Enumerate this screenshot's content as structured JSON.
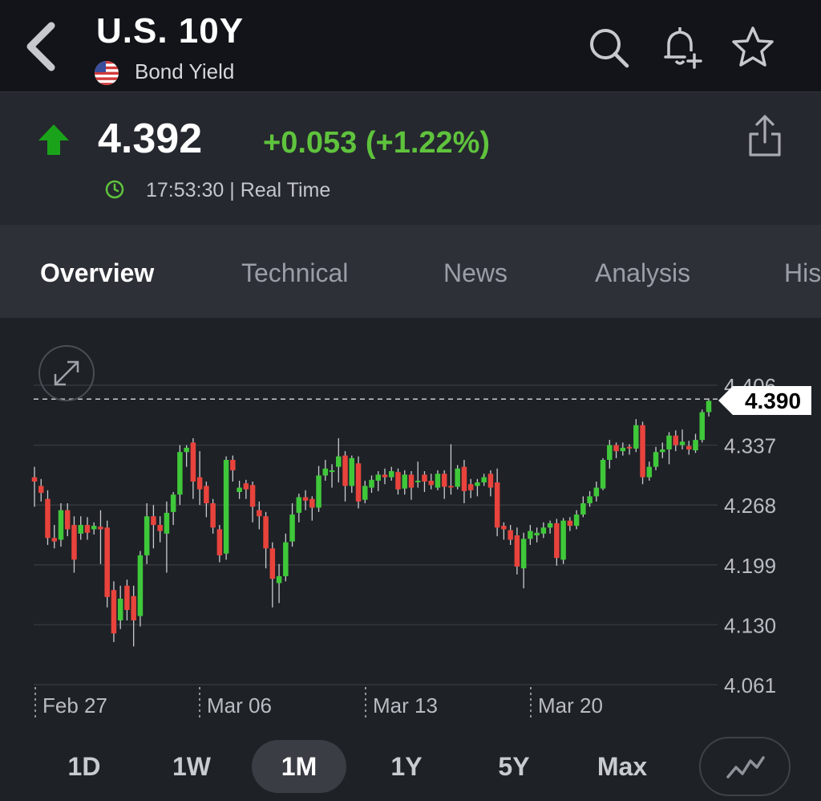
{
  "header": {
    "title": "U.S. 10Y",
    "subtitle": "Bond Yield",
    "icons": [
      "back-chevron-icon",
      "flag-us-icon",
      "search-icon",
      "add-alert-icon",
      "star-icon"
    ]
  },
  "quote": {
    "price": "4.392",
    "change": "+0.053 (+1.22%)",
    "time": "17:53:30 | Real Time",
    "direction": "up",
    "up_color": "#1aa31a"
  },
  "tabs": [
    {
      "label": "Overview",
      "active": true
    },
    {
      "label": "Technical",
      "active": false
    },
    {
      "label": "News",
      "active": false
    },
    {
      "label": "Analysis",
      "active": false
    },
    {
      "label": "His",
      "active": false
    }
  ],
  "chart_data": {
    "type": "candlestick",
    "y_ticks": [
      "4.406",
      "4.337",
      "4.268",
      "4.199",
      "4.130",
      "4.061"
    ],
    "x_ticks": [
      "Feb 27",
      "Mar 06",
      "Mar 13",
      "Mar 20"
    ],
    "ylim": [
      4.061,
      4.406
    ],
    "current_label": "4.390",
    "current_value": 4.39,
    "up_color": "#3fc83a",
    "down_color": "#e8433c",
    "candles": [
      [
        4.3,
        4.295,
        4.312,
        4.266
      ],
      [
        4.29,
        4.282,
        4.298,
        4.272
      ],
      [
        4.275,
        4.23,
        4.285,
        4.222
      ],
      [
        4.23,
        4.226,
        4.245,
        4.218
      ],
      [
        4.228,
        4.262,
        4.27,
        4.22
      ],
      [
        4.262,
        4.24,
        4.27,
        4.232
      ],
      [
        4.245,
        4.205,
        4.255,
        4.19
      ],
      [
        4.235,
        4.245,
        4.255,
        4.228
      ],
      [
        4.245,
        4.236,
        4.254,
        4.228
      ],
      [
        4.24,
        4.244,
        4.248,
        4.234
      ],
      [
        4.243,
        4.24,
        4.262,
        4.2
      ],
      [
        4.242,
        4.162,
        4.25,
        4.15
      ],
      [
        4.17,
        4.12,
        4.18,
        4.11
      ],
      [
        4.135,
        4.16,
        4.175,
        4.125
      ],
      [
        4.175,
        4.147,
        4.182,
        4.135
      ],
      [
        4.163,
        4.135,
        4.175,
        4.105
      ],
      [
        4.14,
        4.21,
        4.215,
        4.128
      ],
      [
        4.21,
        4.255,
        4.27,
        4.2
      ],
      [
        4.255,
        4.245,
        4.268,
        4.218
      ],
      [
        4.245,
        4.238,
        4.255,
        4.225
      ],
      [
        4.235,
        4.259,
        4.272,
        4.19
      ],
      [
        4.26,
        4.28,
        4.283,
        4.245
      ],
      [
        4.28,
        4.329,
        4.337,
        4.268
      ],
      [
        4.329,
        4.334,
        4.337,
        4.312
      ],
      [
        4.34,
        4.295,
        4.345,
        4.275
      ],
      [
        4.3,
        4.286,
        4.33,
        4.268
      ],
      [
        4.29,
        4.27,
        4.295,
        4.254
      ],
      [
        4.27,
        4.242,
        4.275,
        4.235
      ],
      [
        4.24,
        4.21,
        4.245,
        4.202
      ],
      [
        4.212,
        4.32,
        4.324,
        4.205
      ],
      [
        4.32,
        4.308,
        4.325,
        4.295
      ],
      [
        4.283,
        4.288,
        4.296,
        4.275
      ],
      [
        4.293,
        4.286,
        4.297,
        4.275
      ],
      [
        4.291,
        4.266,
        4.295,
        4.248
      ],
      [
        4.262,
        4.255,
        4.272,
        4.24
      ],
      [
        4.255,
        4.218,
        4.26,
        4.195
      ],
      [
        4.218,
        4.183,
        4.225,
        4.15
      ],
      [
        4.178,
        4.186,
        4.2,
        4.155
      ],
      [
        4.186,
        4.225,
        4.235,
        4.18
      ],
      [
        4.226,
        4.257,
        4.27,
        4.22
      ],
      [
        4.259,
        4.277,
        4.281,
        4.248
      ],
      [
        4.277,
        4.273,
        4.285,
        4.262
      ],
      [
        4.275,
        4.265,
        4.278,
        4.25
      ],
      [
        4.265,
        4.302,
        4.313,
        4.26
      ],
      [
        4.302,
        4.31,
        4.32,
        4.296
      ],
      [
        4.306,
        4.308,
        4.315,
        4.288
      ],
      [
        4.312,
        4.324,
        4.345,
        4.294
      ],
      [
        4.325,
        4.29,
        4.33,
        4.272
      ],
      [
        4.29,
        4.322,
        4.325,
        4.282
      ],
      [
        4.316,
        4.272,
        4.324,
        4.264
      ],
      [
        4.274,
        4.29,
        4.296,
        4.27
      ],
      [
        4.288,
        4.297,
        4.302,
        4.282
      ],
      [
        4.296,
        4.303,
        4.307,
        4.284
      ],
      [
        4.303,
        4.3,
        4.31,
        4.292
      ],
      [
        4.3,
        4.307,
        4.312,
        4.296
      ],
      [
        4.306,
        4.286,
        4.31,
        4.28
      ],
      [
        4.287,
        4.303,
        4.308,
        4.28
      ],
      [
        4.303,
        4.288,
        4.307,
        4.274
      ],
      [
        4.296,
        4.296,
        4.318,
        4.288
      ],
      [
        4.303,
        4.295,
        4.307,
        4.283
      ],
      [
        4.296,
        4.291,
        4.304,
        4.286
      ],
      [
        4.288,
        4.304,
        4.308,
        4.285
      ],
      [
        4.304,
        4.289,
        4.308,
        4.275
      ],
      [
        4.29,
        4.289,
        4.338,
        4.28
      ],
      [
        4.289,
        4.31,
        4.314,
        4.286
      ],
      [
        4.312,
        4.284,
        4.32,
        4.27
      ],
      [
        4.292,
        4.285,
        4.298,
        4.276
      ],
      [
        4.29,
        4.294,
        4.298,
        4.278
      ],
      [
        4.294,
        4.3,
        4.304,
        4.29
      ],
      [
        4.304,
        4.288,
        4.308,
        4.278
      ],
      [
        4.294,
        4.242,
        4.31,
        4.232
      ],
      [
        4.244,
        4.24,
        4.248,
        4.228
      ],
      [
        4.239,
        4.228,
        4.245,
        4.222
      ],
      [
        4.233,
        4.197,
        4.242,
        4.188
      ],
      [
        4.195,
        4.229,
        4.236,
        4.172
      ],
      [
        4.229,
        4.238,
        4.245,
        4.222
      ],
      [
        4.233,
        4.236,
        4.242,
        4.225
      ],
      [
        4.235,
        4.242,
        4.248,
        4.23
      ],
      [
        4.242,
        4.247,
        4.25,
        4.235
      ],
      [
        4.247,
        4.207,
        4.252,
        4.198
      ],
      [
        4.205,
        4.25,
        4.253,
        4.2
      ],
      [
        4.25,
        4.244,
        4.254,
        4.238
      ],
      [
        4.244,
        4.257,
        4.262,
        4.24
      ],
      [
        4.257,
        4.27,
        4.278,
        4.254
      ],
      [
        4.27,
        4.278,
        4.284,
        4.266
      ],
      [
        4.278,
        4.288,
        4.295,
        4.272
      ],
      [
        4.287,
        4.32,
        4.322,
        4.285
      ],
      [
        4.32,
        4.337,
        4.343,
        4.31
      ],
      [
        4.337,
        4.33,
        4.34,
        4.322
      ],
      [
        4.33,
        4.334,
        4.34,
        4.325
      ],
      [
        4.335,
        4.334,
        4.338,
        4.326
      ],
      [
        4.333,
        4.36,
        4.367,
        4.329
      ],
      [
        4.36,
        4.3,
        4.364,
        4.292
      ],
      [
        4.3,
        4.312,
        4.318,
        4.296
      ],
      [
        4.312,
        4.329,
        4.335,
        4.308
      ],
      [
        4.329,
        4.332,
        4.34,
        4.322
      ],
      [
        4.332,
        4.348,
        4.352,
        4.315
      ],
      [
        4.348,
        4.337,
        4.354,
        4.33
      ],
      [
        4.337,
        4.341,
        4.355,
        4.332
      ],
      [
        4.336,
        4.332,
        4.342,
        4.326
      ],
      [
        4.331,
        4.343,
        4.35,
        4.328
      ],
      [
        4.343,
        4.375,
        4.378,
        4.34
      ],
      [
        4.375,
        4.388,
        4.391,
        4.37
      ]
    ]
  },
  "ranges": [
    {
      "label": "1D",
      "active": false
    },
    {
      "label": "1W",
      "active": false
    },
    {
      "label": "1M",
      "active": true
    },
    {
      "label": "1Y",
      "active": false
    },
    {
      "label": "5Y",
      "active": false
    },
    {
      "label": "Max",
      "active": false
    }
  ],
  "chart_type_icon": "line-chart-icon"
}
